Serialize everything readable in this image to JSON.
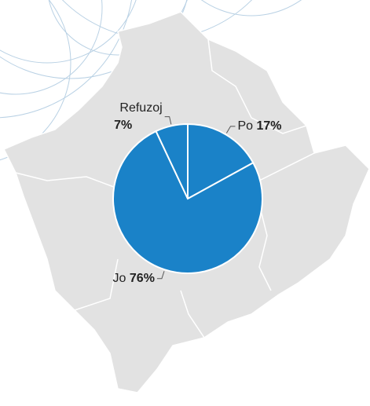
{
  "chart_data": {
    "type": "pie",
    "categories": [
      "Po",
      "Jo",
      "Refuzoj"
    ],
    "values": [
      17,
      76,
      7
    ],
    "value_labels": [
      "17%",
      "76%",
      "7%"
    ],
    "color": "#1a82c8"
  }
}
